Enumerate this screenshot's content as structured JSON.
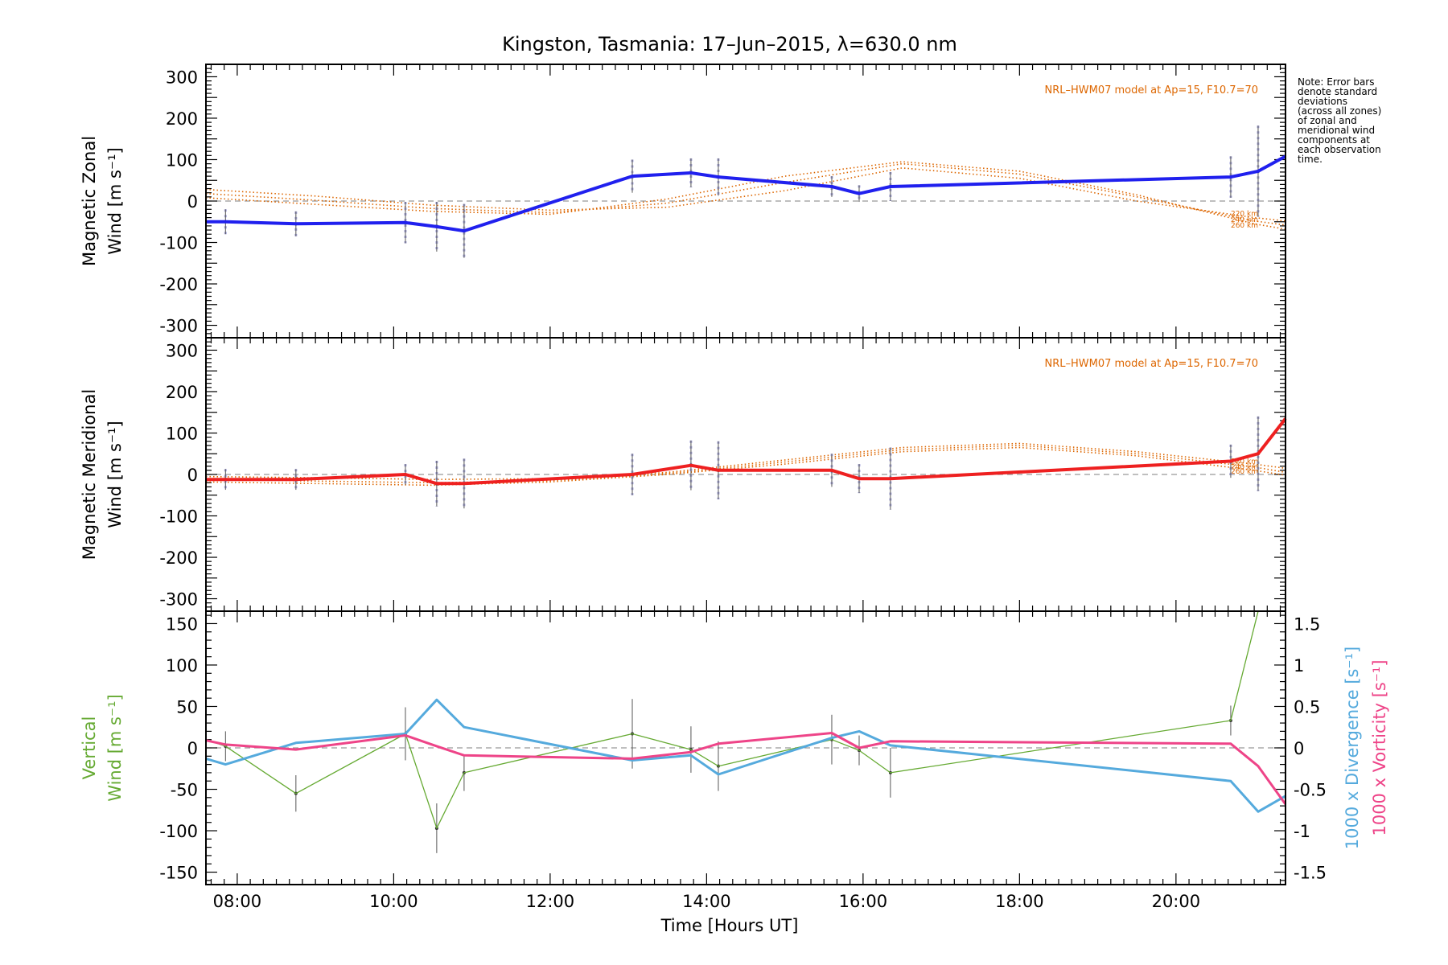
{
  "figure": {
    "title": "Kingston, Tasmania: 17–Jun–2015, λ=630.0 nm",
    "xlabel": "Time [Hours UT]",
    "note": [
      "Note: Error bars",
      "denote standard",
      "deviations",
      "(across all zones)",
      "of zonal and",
      "meridional wind",
      "components at",
      "each observation",
      "time."
    ],
    "model_label": "NRL–HWM07 model at Ap=15, F10.7=70",
    "altitudes": [
      "220 km",
      "240 km",
      "260 km"
    ]
  },
  "colors": {
    "zonal": "#2020ee",
    "meridional": "#ee2020",
    "vertical": "#66aa33",
    "divergence": "#55aadd",
    "vorticity": "#ee4488",
    "model": "#dd6600",
    "zero": "#999999",
    "scatter": "#aaaadd"
  },
  "chart_data": [
    {
      "type": "line",
      "panel": "zonal",
      "ylabel_line1": "Magnetic Zonal",
      "ylabel_line2": "Wind [m s⁻¹]",
      "xlim": [
        7.6,
        21.4
      ],
      "ylim": [
        -330,
        330
      ],
      "yticks": [
        300,
        200,
        100,
        0,
        -100,
        -200,
        -300
      ],
      "xticks": [
        "08:00",
        "10:00",
        "12:00",
        "14:00",
        "16:00",
        "18:00",
        "20:00"
      ],
      "series": [
        {
          "x": [
            7.6,
            7.85,
            8.75,
            10.15,
            10.55,
            10.9,
            13.05,
            13.8,
            14.15,
            15.6,
            15.95,
            16.35,
            20.7,
            21.05,
            21.4
          ],
          "y": [
            -50,
            -50,
            -55,
            -52,
            -62,
            -72,
            60,
            68,
            58,
            35,
            18,
            35,
            58,
            72,
            108
          ],
          "err": [
            null,
            30,
            30,
            50,
            60,
            65,
            40,
            35,
            45,
            25,
            20,
            35,
            50,
            110,
            null
          ]
        }
      ],
      "model": [
        {
          "name": "220 km",
          "x": [
            7.6,
            9,
            10.5,
            12,
            13.5,
            15,
            16.5,
            18,
            19.5,
            21,
            21.4
          ],
          "y": [
            28,
            12,
            -10,
            -22,
            -15,
            25,
            80,
            55,
            0,
            -40,
            -48
          ]
        },
        {
          "name": "240 km",
          "x": [
            7.6,
            9,
            10.5,
            12,
            13.5,
            15,
            16.5,
            18,
            19.5,
            21,
            21.4
          ],
          "y": [
            18,
            2,
            -18,
            -28,
            -5,
            45,
            90,
            65,
            10,
            -48,
            -58
          ]
        },
        {
          "name": "260 km",
          "x": [
            7.6,
            9,
            10.5,
            12,
            13.5,
            15,
            16.5,
            18,
            19.5,
            21,
            21.4
          ],
          "y": [
            8,
            -8,
            -25,
            -32,
            5,
            60,
            95,
            72,
            15,
            -55,
            -68
          ]
        }
      ]
    },
    {
      "type": "line",
      "panel": "meridional",
      "ylabel_line1": "Magnetic Meridional",
      "ylabel_line2": "Wind [m s⁻¹]",
      "xlim": [
        7.6,
        21.4
      ],
      "ylim": [
        -330,
        330
      ],
      "yticks": [
        300,
        200,
        100,
        0,
        -100,
        -200,
        -300
      ],
      "xticks": [
        "08:00",
        "10:00",
        "12:00",
        "14:00",
        "16:00",
        "18:00",
        "20:00"
      ],
      "series": [
        {
          "x": [
            7.6,
            7.85,
            8.75,
            10.15,
            10.55,
            10.9,
            13.05,
            13.8,
            14.15,
            15.6,
            15.95,
            16.35,
            20.7,
            21.05,
            21.4
          ],
          "y": [
            -12,
            -12,
            -12,
            0,
            -22,
            -22,
            0,
            22,
            10,
            10,
            -10,
            -10,
            32,
            50,
            135
          ],
          "err": [
            null,
            25,
            25,
            25,
            55,
            60,
            50,
            60,
            70,
            40,
            35,
            75,
            40,
            90,
            null
          ]
        }
      ],
      "model": [
        {
          "name": "220 km",
          "x": [
            7.6,
            9,
            10.5,
            12,
            13.5,
            15,
            16.5,
            18,
            19.5,
            21,
            21.4
          ],
          "y": [
            -5,
            -8,
            -12,
            -10,
            5,
            35,
            65,
            75,
            55,
            25,
            15
          ]
        },
        {
          "name": "240 km",
          "x": [
            7.6,
            9,
            10.5,
            12,
            13.5,
            15,
            16.5,
            18,
            19.5,
            21,
            21.4
          ],
          "y": [
            -12,
            -16,
            -20,
            -15,
            2,
            30,
            60,
            70,
            50,
            18,
            5
          ]
        },
        {
          "name": "260 km",
          "x": [
            7.6,
            9,
            10.5,
            12,
            13.5,
            15,
            16.5,
            18,
            19.5,
            21,
            21.4
          ],
          "y": [
            -18,
            -22,
            -26,
            -18,
            0,
            25,
            55,
            65,
            45,
            10,
            -2
          ]
        }
      ]
    },
    {
      "type": "line",
      "panel": "vertical",
      "ylabel_line1": "Vertical",
      "ylabel_line2": "Wind [m s⁻¹]",
      "y2label_line1": "1000 x Divergence [s⁻¹]",
      "y2label_line2": "1000 x Vorticity [s⁻¹]",
      "xlim": [
        7.6,
        21.4
      ],
      "ylim": [
        -165,
        165
      ],
      "y2lim": [
        -1.65,
        1.65
      ],
      "yticks": [
        150,
        100,
        50,
        0,
        -50,
        -100,
        -150
      ],
      "y2ticks": [
        1.5,
        1.0,
        0.5,
        0.0,
        -0.5,
        -1.0,
        -1.5
      ],
      "xticks": [
        "08:00",
        "10:00",
        "12:00",
        "14:00",
        "16:00",
        "18:00",
        "20:00"
      ],
      "series": [
        {
          "name": "vertical",
          "x": [
            7.6,
            7.85,
            8.75,
            10.15,
            10.55,
            10.9,
            13.05,
            13.8,
            14.15,
            15.6,
            15.95,
            16.35,
            20.7,
            21.05
          ],
          "y": [
            10,
            2,
            -55,
            17,
            -97,
            -30,
            17,
            -2,
            -22,
            10,
            -3,
            -30,
            33,
            165
          ],
          "err": [
            null,
            18,
            22,
            32,
            30,
            22,
            42,
            28,
            30,
            30,
            18,
            30,
            18,
            null
          ]
        },
        {
          "name": "divergence",
          "x": [
            7.6,
            7.85,
            8.75,
            10.15,
            10.55,
            10.9,
            13.05,
            13.8,
            14.15,
            15.6,
            15.95,
            16.35,
            20.7,
            21.05,
            21.4
          ],
          "y": [
            -0.13,
            -0.2,
            0.06,
            0.17,
            0.58,
            0.25,
            -0.15,
            -0.09,
            -0.32,
            0.12,
            0.2,
            0.03,
            -0.4,
            -0.77,
            -0.58
          ]
        },
        {
          "name": "vorticity",
          "x": [
            7.6,
            7.85,
            8.75,
            10.15,
            10.55,
            10.9,
            13.05,
            13.8,
            14.15,
            15.6,
            15.95,
            16.35,
            20.7,
            21.05,
            21.4
          ],
          "y": [
            0.09,
            0.04,
            -0.02,
            0.15,
            0.02,
            -0.09,
            -0.13,
            -0.05,
            0.05,
            0.18,
            0.0,
            0.08,
            0.05,
            -0.22,
            -0.68
          ]
        }
      ]
    }
  ]
}
